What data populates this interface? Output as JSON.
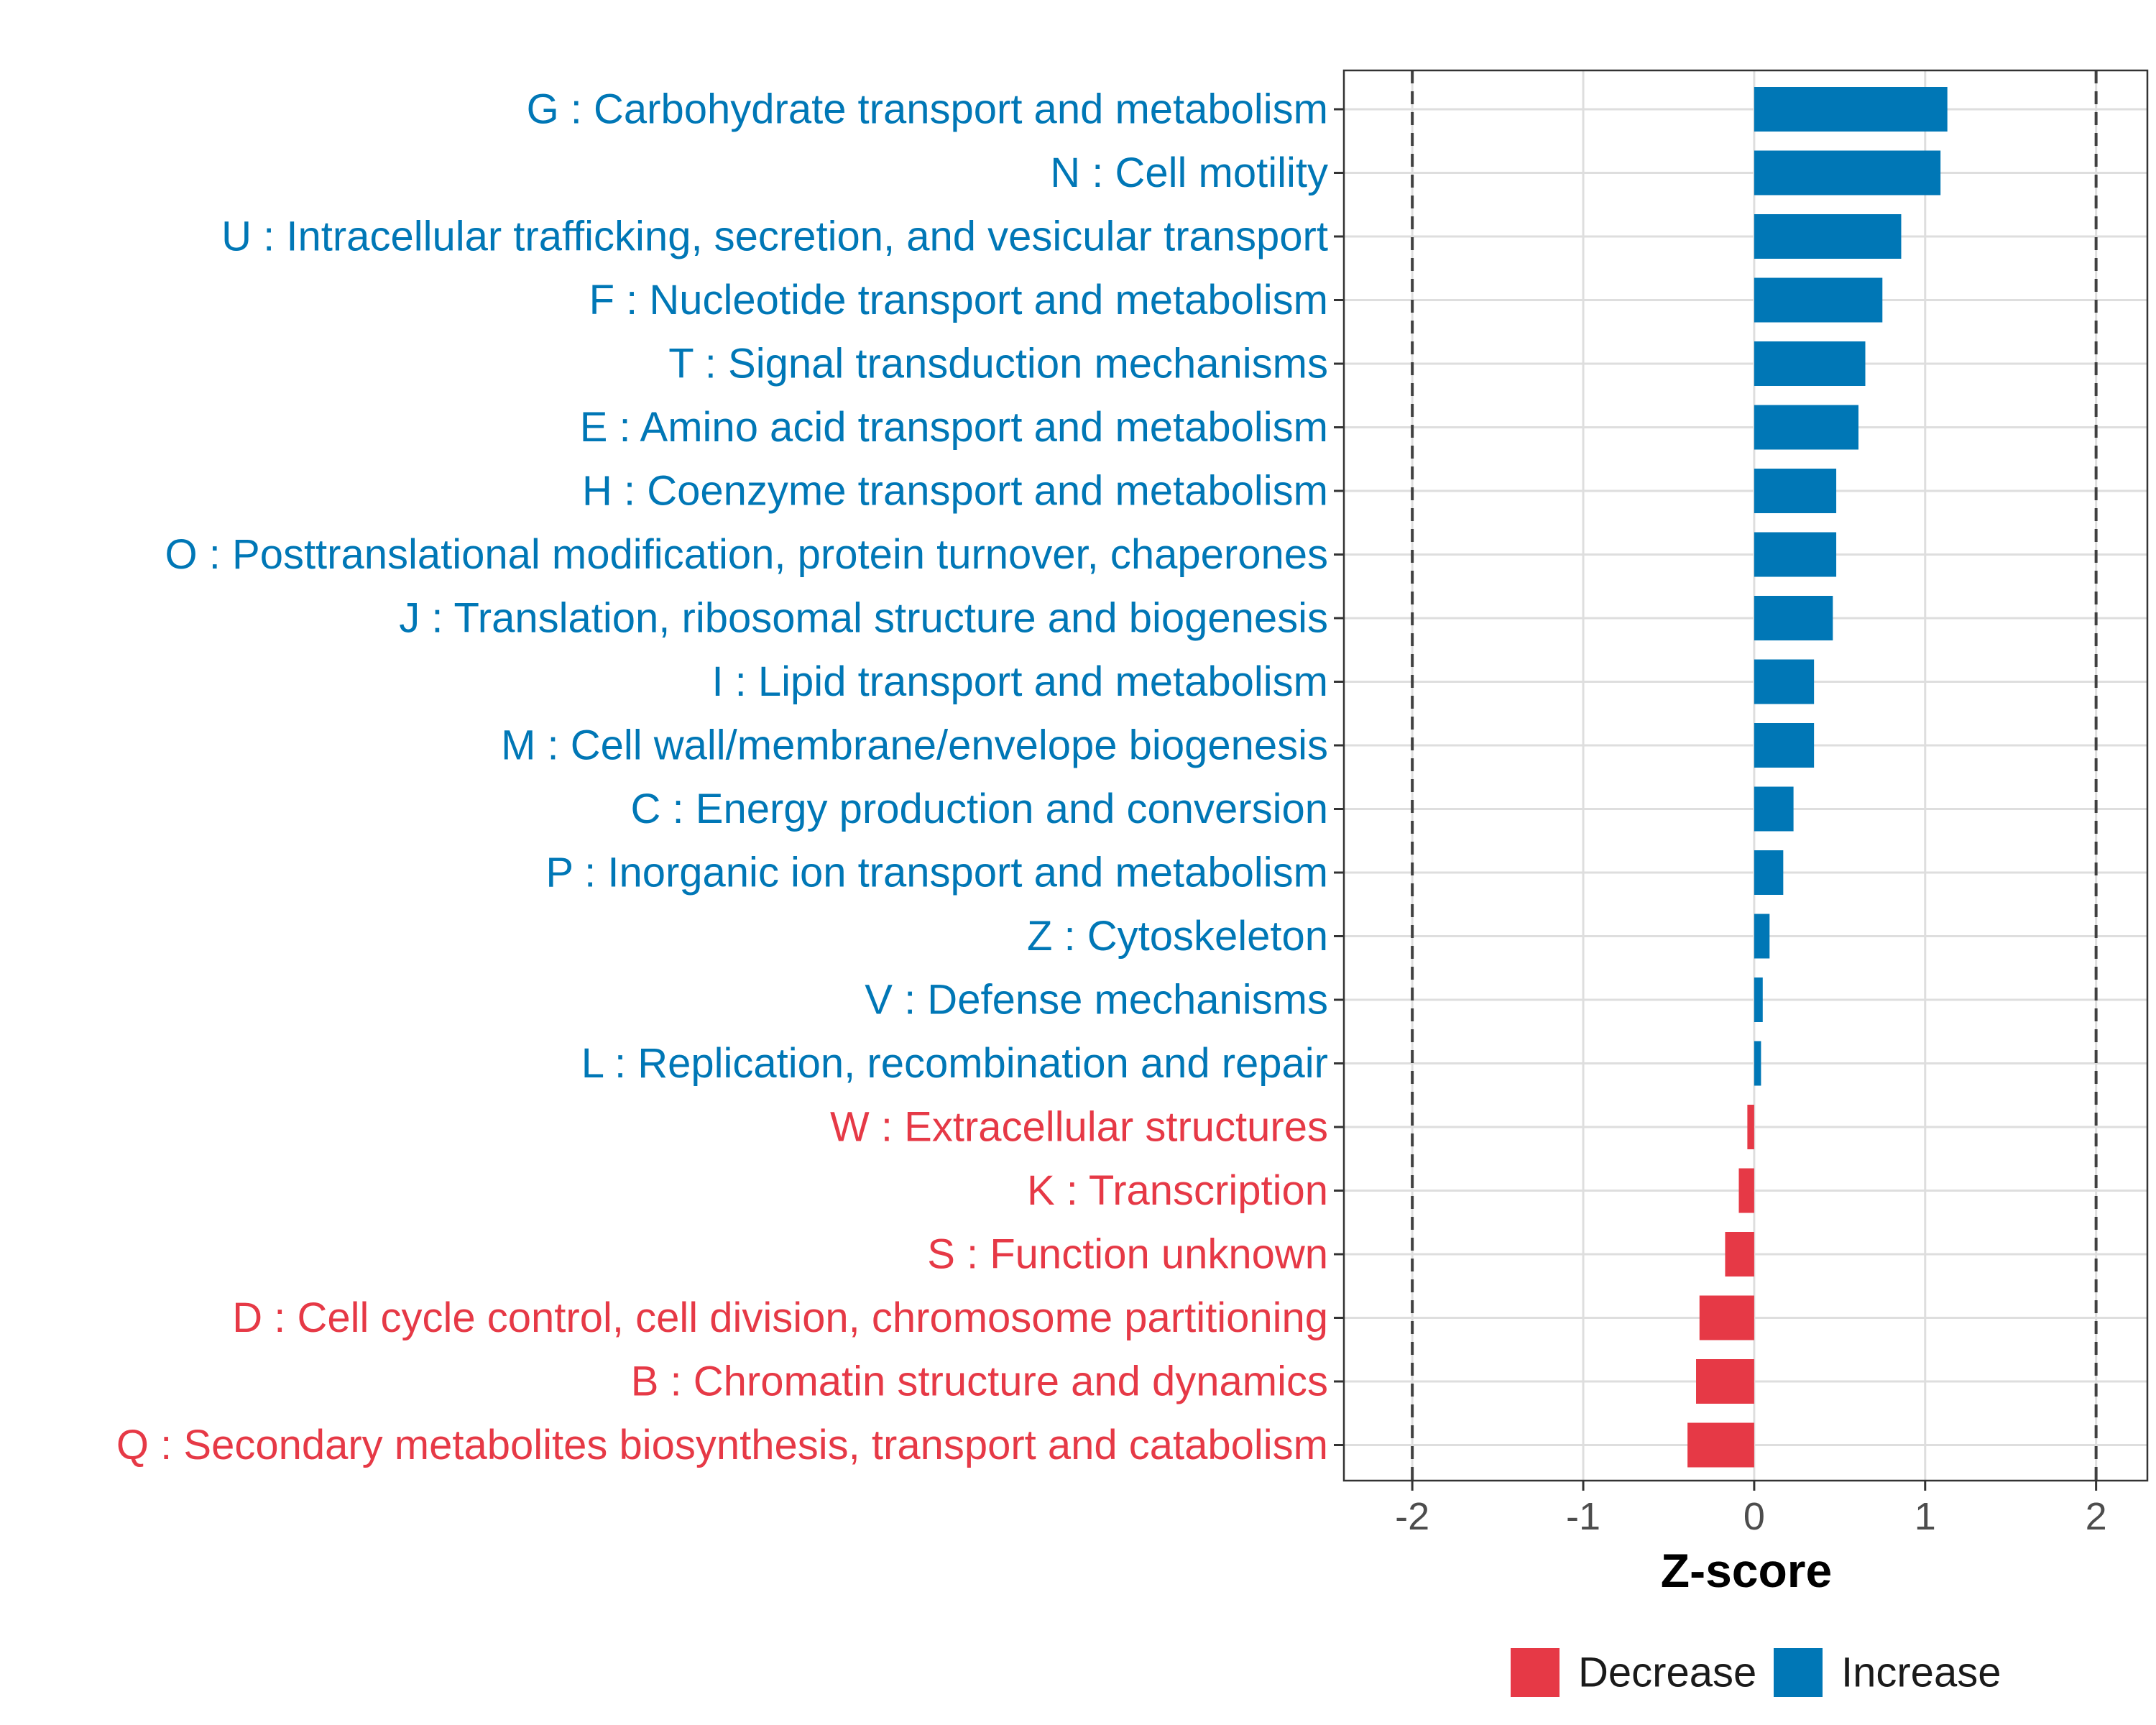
{
  "chart_data": {
    "type": "bar",
    "orientation": "horizontal",
    "xlabel": "Z-score",
    "xlim": [
      -2.4,
      2.3
    ],
    "xticks": [
      -2,
      -1,
      0,
      1,
      2
    ],
    "tick_labels": [
      "-2",
      "-1",
      "0",
      "1",
      "2"
    ],
    "reference_lines": [
      -2,
      2
    ],
    "colors": {
      "Decrease": "#e63946",
      "Increase": "#0077b6"
    },
    "legend": {
      "placement": "bottom",
      "entries": [
        {
          "name": "Decrease",
          "color": "#e63946"
        },
        {
          "name": "Increase",
          "color": "#0077b6"
        }
      ]
    },
    "categories": [
      "G : Carbohydrate transport and metabolism",
      "N : Cell motility",
      "U : Intracellular trafficking, secretion, and vesicular transport",
      "F : Nucleotide transport and metabolism",
      "T : Signal transduction mechanisms",
      "E : Amino acid transport and metabolism",
      "H : Coenzyme transport and metabolism",
      "O : Posttranslational modification, protein turnover, chaperones",
      "J : Translation, ribosomal structure and biogenesis",
      "I : Lipid transport and metabolism",
      "M : Cell wall/membrane/envelope biogenesis",
      "C : Energy production and conversion",
      "P : Inorganic ion transport and metabolism",
      "Z : Cytoskeleton",
      "V : Defense mechanisms",
      "L : Replication, recombination and repair",
      "W : Extracellular structures",
      "K : Transcription",
      "S : Function unknown",
      "D : Cell cycle control, cell division, chromosome partitioning",
      "B : Chromatin structure and dynamics",
      "Q : Secondary metabolites biosynthesis, transport and catabolism"
    ],
    "values": [
      1.13,
      1.09,
      0.86,
      0.75,
      0.65,
      0.61,
      0.48,
      0.48,
      0.46,
      0.35,
      0.35,
      0.23,
      0.17,
      0.09,
      0.05,
      0.04,
      -0.04,
      -0.09,
      -0.17,
      -0.32,
      -0.34,
      -0.39
    ],
    "groups": [
      "Increase",
      "Increase",
      "Increase",
      "Increase",
      "Increase",
      "Increase",
      "Increase",
      "Increase",
      "Increase",
      "Increase",
      "Increase",
      "Increase",
      "Increase",
      "Increase",
      "Increase",
      "Increase",
      "Decrease",
      "Decrease",
      "Decrease",
      "Decrease",
      "Decrease",
      "Decrease"
    ]
  }
}
